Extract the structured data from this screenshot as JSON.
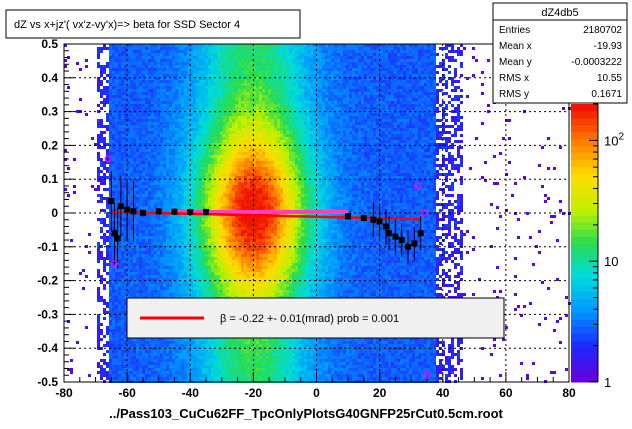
{
  "title": "dZ vs  x+jz'( vx'z-vy'x)=> beta  for SSD Sector 4",
  "xlabel": "../Pass103_CuCu62FF_TpcOnlyPlotsG40GNFP25rCut0.5cm.root",
  "stats": {
    "name": "dZ4db5",
    "rows": [
      {
        "label": "Entries",
        "value": "2180702"
      },
      {
        "label": "Mean x",
        "value": "-19.93"
      },
      {
        "label": "Mean y",
        "value": "-0.0003222"
      },
      {
        "label": "RMS x",
        "value": "10.55"
      },
      {
        "label": "RMS y",
        "value": "0.1671"
      }
    ]
  },
  "legend": {
    "text": "β =    -0.22 +-     0.01(mrad) prob = 0.001",
    "line_color": "#ff0000"
  },
  "colorbar": {
    "scale": "log",
    "range": [
      1,
      200
    ],
    "tick_labels": [
      {
        "value": 1,
        "base": "1",
        "exp": ""
      },
      {
        "value": 10,
        "base": "10",
        "exp": ""
      },
      {
        "value": 100,
        "base": "10",
        "exp": "2"
      }
    ]
  },
  "chart_data": {
    "type": "heatmap",
    "xlim": [
      -80,
      80
    ],
    "ylim": [
      -0.5,
      0.5
    ],
    "x_ticks": [
      -80,
      -60,
      -40,
      -20,
      0,
      20,
      40,
      60,
      80
    ],
    "y_ticks": [
      -0.5,
      -0.4,
      -0.3,
      -0.2,
      -0.1,
      0,
      0.1,
      0.2,
      0.3,
      0.4,
      0.5
    ],
    "x_tick_labels": [
      "-80",
      "-60",
      "-40",
      "-20",
      "0",
      "20",
      "40",
      "60",
      "80"
    ],
    "y_tick_labels": [
      "-0.5",
      "-0.4",
      "-0.3",
      "-0.2",
      "-0.1",
      "0",
      "0.1",
      "0.2",
      "0.3",
      "0.4",
      "0.5"
    ],
    "grid": true,
    "density": {
      "x_center": -20,
      "x_sigma": 12,
      "x_min": -66,
      "x_max": 38,
      "y_center": 0,
      "y_sigma": 0.17
    },
    "fit": {
      "x0": -65,
      "y0": 0.003,
      "x1": 33,
      "y1": -0.018,
      "color": "#ff0000"
    },
    "profile_black": [
      {
        "x": -65,
        "y": 0.035
      },
      {
        "x": -64,
        "y": -0.06
      },
      {
        "x": -63,
        "y": -0.075
      },
      {
        "x": -62,
        "y": 0.02
      },
      {
        "x": -60,
        "y": 0.01
      },
      {
        "x": -58,
        "y": 0.005
      },
      {
        "x": -55,
        "y": 0.0
      },
      {
        "x": -50,
        "y": 0.005
      },
      {
        "x": -45,
        "y": 0.004
      },
      {
        "x": -40,
        "y": 0.003
      },
      {
        "x": -35,
        "y": 0.003
      },
      {
        "x": 10,
        "y": -0.01
      },
      {
        "x": 15,
        "y": -0.015
      },
      {
        "x": 18,
        "y": -0.02
      },
      {
        "x": 20,
        "y": -0.025
      },
      {
        "x": 22,
        "y": -0.04
      },
      {
        "x": 23,
        "y": -0.06
      },
      {
        "x": 25,
        "y": -0.07
      },
      {
        "x": 27,
        "y": -0.08
      },
      {
        "x": 29,
        "y": -0.1
      },
      {
        "x": 31,
        "y": -0.09
      },
      {
        "x": 33,
        "y": -0.06
      }
    ],
    "profile_magenta": [
      {
        "x": -66,
        "y": 0.16
      },
      {
        "x": -64,
        "y": -0.15
      },
      {
        "x": 32,
        "y": 0.08
      },
      {
        "x": 34,
        "y": 0.0
      },
      {
        "x": 35,
        "y": -0.48
      }
    ]
  }
}
